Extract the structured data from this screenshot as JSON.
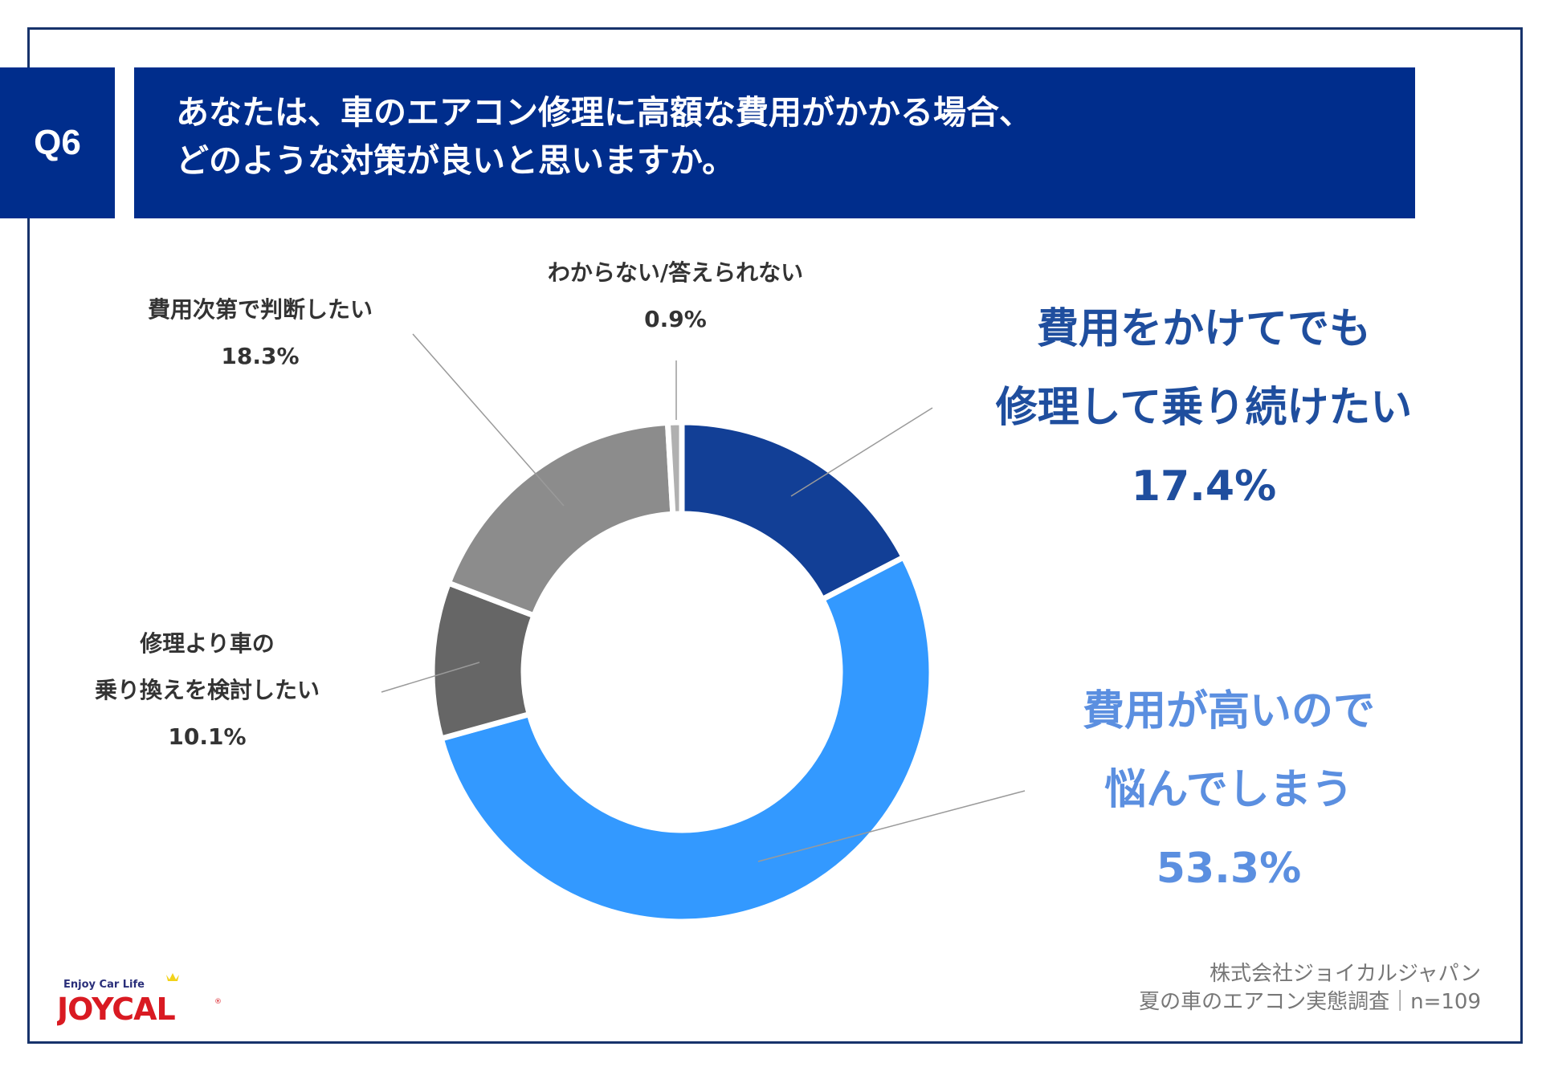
{
  "header": {
    "question_number": "Q6",
    "title_lines": [
      "あなたは、車のエアコン修理に高額な費用がかかる場合、",
      "どのような対策が良いと思いますか。"
    ]
  },
  "chart_data": {
    "type": "pie",
    "variant": "donut",
    "title": "あなたは、車のエアコン修理に高額な費用がかかる場合、どのような対策が良いと思いますか。",
    "slices": [
      {
        "label_lines": [
          "費用をかけてでも",
          "修理して乗り続けたい"
        ],
        "value": 17.4,
        "value_label": "17.4%",
        "color": "#123f96"
      },
      {
        "label_lines": [
          "費用が高いので",
          "悩んでしまう"
        ],
        "value": 53.3,
        "value_label": "53.3%",
        "color": "#3399ff"
      },
      {
        "label_lines": [
          "修理より車の",
          "乗り換えを検討したい"
        ],
        "value": 10.1,
        "value_label": "10.1%",
        "color": "#666666"
      },
      {
        "label_lines": [
          "費用次第で判断したい"
        ],
        "value": 18.3,
        "value_label": "18.3%",
        "color": "#8c8c8c"
      },
      {
        "label_lines": [
          "わからない/答えられない"
        ],
        "value": 0.9,
        "value_label": "0.9%",
        "color": "#b0b0b0"
      }
    ]
  },
  "footer": {
    "company": "株式会社ジョイカルジャパン",
    "survey": "夏の車のエアコン実態調査｜n=109"
  },
  "logo": {
    "tagline": "Enjoy Car Life",
    "brand": "JOYCAL"
  }
}
